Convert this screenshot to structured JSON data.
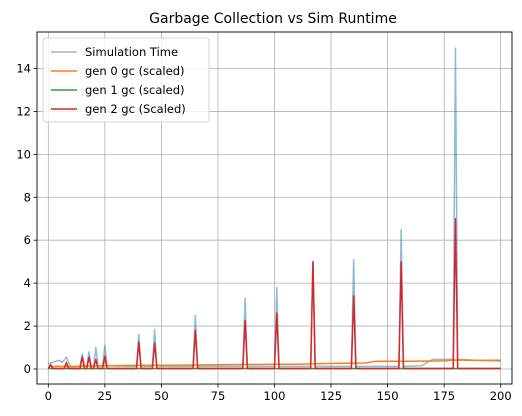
{
  "chart_data": {
    "type": "line",
    "title": "Garbage Collection vs Sim Runtime",
    "xlabel": "",
    "ylabel": "",
    "xlim": [
      -5,
      205
    ],
    "ylim": [
      -0.7,
      15.7
    ],
    "xticks": [
      0,
      25,
      50,
      75,
      100,
      125,
      150,
      175,
      200
    ],
    "yticks": [
      0,
      2,
      4,
      6,
      8,
      10,
      12,
      14
    ],
    "grid": true,
    "legend": "upper left",
    "series": [
      {
        "name": "Simulation Time",
        "color": "#1f77b4",
        "alpha": 0.5,
        "x": [
          0,
          1,
          2,
          3,
          4,
          5,
          6,
          7,
          8,
          9,
          10,
          14,
          15,
          16,
          17,
          18,
          19,
          20,
          21,
          22,
          24,
          25,
          26,
          39,
          40,
          41,
          46,
          47,
          48,
          64,
          65,
          66,
          86,
          87,
          88,
          100,
          101,
          102,
          116,
          117,
          118,
          134,
          135,
          136,
          155,
          156,
          157,
          165,
          170,
          179,
          180,
          181,
          190,
          200
        ],
        "y": [
          0.25,
          0.28,
          0.3,
          0.35,
          0.38,
          0.4,
          0.3,
          0.42,
          0.55,
          0.3,
          0.1,
          0.12,
          0.7,
          0.15,
          0.12,
          0.8,
          0.15,
          0.12,
          1.0,
          0.15,
          0.12,
          1.1,
          0.15,
          0.12,
          1.6,
          0.12,
          0.12,
          1.85,
          0.12,
          0.12,
          2.5,
          0.12,
          0.12,
          3.3,
          0.12,
          0.12,
          3.8,
          0.12,
          0.12,
          5.0,
          0.12,
          0.12,
          5.1,
          0.12,
          0.12,
          6.5,
          0.12,
          0.15,
          0.45,
          0.45,
          14.95,
          0.45,
          0.4,
          0.42
        ]
      },
      {
        "name": "gen 0 gc (scaled)",
        "color": "#ff7f0e",
        "alpha": 1,
        "x": [
          0,
          1,
          2,
          3,
          10,
          25,
          40,
          60,
          80,
          100,
          110,
          125,
          140,
          145,
          160,
          175,
          180,
          190,
          200
        ],
        "y": [
          0.02,
          0.15,
          0.1,
          0.13,
          0.12,
          0.15,
          0.17,
          0.18,
          0.2,
          0.22,
          0.22,
          0.26,
          0.28,
          0.36,
          0.36,
          0.38,
          0.42,
          0.4,
          0.38
        ]
      },
      {
        "name": "gen 1 gc (scaled)",
        "color": "#2ca02c",
        "alpha": 1,
        "x": [
          0,
          50,
          100,
          150,
          200
        ],
        "y": [
          0.02,
          0.02,
          0.02,
          0.02,
          0.02
        ]
      },
      {
        "name": "gen 2 gc (Scaled)",
        "color": "#d62728",
        "alpha": 1,
        "x": [
          0,
          1,
          2,
          3,
          7,
          8,
          9,
          14,
          15,
          16,
          17,
          18,
          19,
          20,
          21,
          22,
          24,
          25,
          26,
          39,
          40,
          41,
          46,
          47,
          48,
          64,
          65,
          66,
          86,
          87,
          88,
          100,
          101,
          102,
          116,
          117,
          118,
          134,
          135,
          136,
          155,
          156,
          157,
          179,
          180,
          181,
          200
        ],
        "y": [
          0.02,
          0.2,
          0.02,
          0.02,
          0.02,
          0.3,
          0.02,
          0.02,
          0.55,
          0.02,
          0.02,
          0.55,
          0.02,
          0.02,
          0.45,
          0.02,
          0.02,
          0.6,
          0.02,
          0.02,
          1.25,
          0.02,
          0.02,
          1.2,
          0.02,
          0.02,
          1.8,
          0.02,
          0.02,
          2.25,
          0.02,
          0.02,
          2.6,
          0.02,
          0.02,
          5.0,
          0.02,
          0.02,
          3.4,
          0.02,
          0.02,
          5.0,
          0.02,
          0.02,
          7.0,
          0.02,
          0.02
        ]
      }
    ]
  }
}
